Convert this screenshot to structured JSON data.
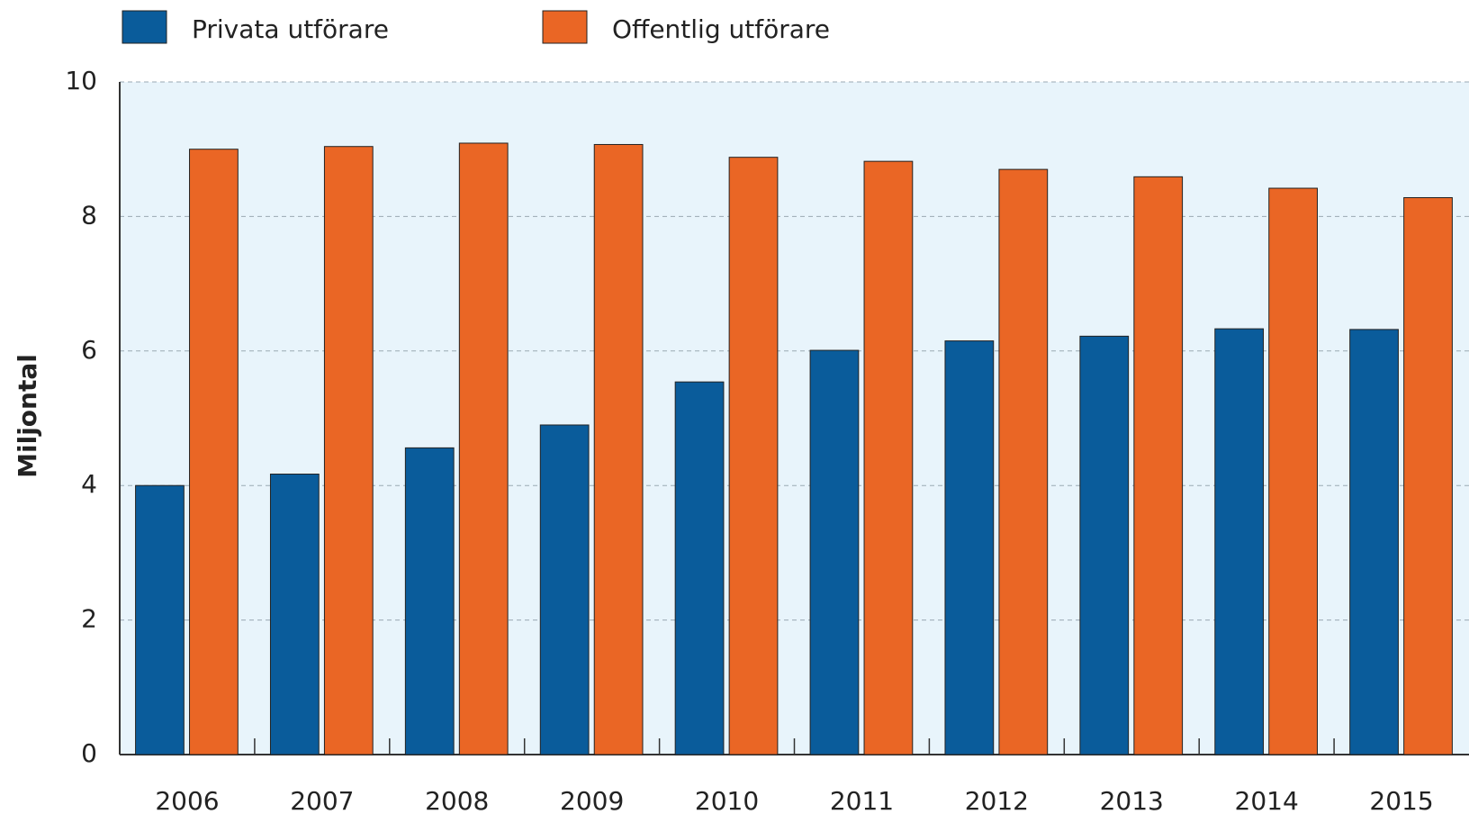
{
  "chart_data": {
    "type": "bar",
    "y_label": "Miljontal",
    "categories": [
      "2006",
      "2007",
      "2008",
      "2009",
      "2010",
      "2011",
      "2012",
      "2013",
      "2014",
      "2015"
    ],
    "series": [
      {
        "name": "Privata utförare",
        "color": "#0a5c9b",
        "values": [
          4.0,
          4.17,
          4.56,
          4.9,
          5.54,
          6.01,
          6.15,
          6.22,
          6.33,
          6.32
        ]
      },
      {
        "name": "Offentlig utförare",
        "color": "#ea6625",
        "values": [
          9.0,
          9.04,
          9.09,
          9.07,
          8.88,
          8.82,
          8.7,
          8.59,
          8.42,
          8.28
        ]
      }
    ],
    "ylim": [
      0,
      10
    ],
    "yticks": [
      0,
      2,
      4,
      6,
      8,
      10
    ],
    "grid": true,
    "legend": "top"
  }
}
